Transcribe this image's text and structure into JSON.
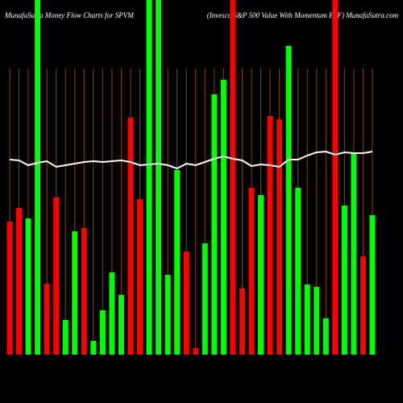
{
  "chart_data": {
    "type": "bar",
    "title": "MunafaSutra  Money Flow  Charts for SPVM",
    "subtitle": "(Invesco S&P 500 Value With Momentum ETF) MunafaSutra.com",
    "values": [
      165,
      182,
      169,
      440,
      88,
      195,
      43,
      153,
      157,
      17,
      55,
      102,
      74,
      294,
      193,
      440,
      440,
      99,
      229,
      128,
      8,
      138,
      323,
      341,
      440,
      82,
      207,
      198,
      296,
      292,
      383,
      207,
      87,
      84,
      45,
      440,
      185,
      250,
      122,
      173
    ],
    "colors": [
      "#ff0000",
      "#ff0000",
      "#00ff00",
      "#00ff00",
      "#ff0000",
      "#ff0000",
      "#00ff00",
      "#00ff00",
      "#ff0000",
      "#00ff00",
      "#00ff00",
      "#00ff00",
      "#00ff00",
      "#ff0000",
      "#ff0000",
      "#00ff00",
      "#00ff00",
      "#00ff00",
      "#00ff00",
      "#ff0000",
      "#ff0000",
      "#00ff00",
      "#00ff00",
      "#00ff00",
      "#ff0000",
      "#ff0000",
      "#ff0000",
      "#00ff00",
      "#ff0000",
      "#ff0000",
      "#00ff00",
      "#00ff00",
      "#00ff00",
      "#00ff00",
      "#00ff00",
      "#ff0000",
      "#00ff00",
      "#00ff00",
      "#ff0000",
      "#00ff00"
    ],
    "line_values": [
      242,
      241,
      235,
      238,
      240,
      233,
      235,
      237,
      239,
      240,
      239,
      240,
      241,
      239,
      235,
      236,
      237,
      235,
      231,
      237,
      235,
      239,
      243,
      246,
      243,
      241,
      234,
      236,
      235,
      233,
      242,
      242,
      247,
      251,
      252,
      248,
      251,
      250,
      250,
      252
    ],
    "line_color": "#ffffff",
    "grid_color": "#8b4500"
  }
}
